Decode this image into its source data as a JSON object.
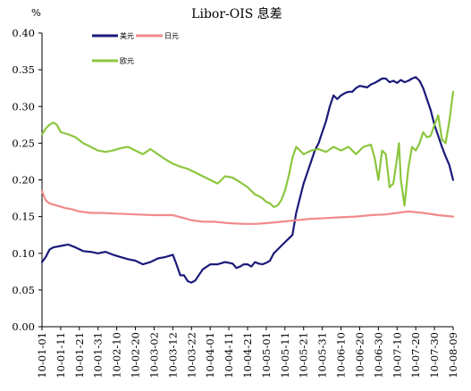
{
  "chart_data": {
    "type": "line",
    "title": "Libor-OIS 息差",
    "ylabel": "%",
    "xlabel": "",
    "ylim": [
      0,
      0.4
    ],
    "y_ticks": [
      "0.00",
      "0.05",
      "0.10",
      "0.15",
      "0.20",
      "0.25",
      "0.30",
      "0.35",
      "0.40"
    ],
    "x_ticks": [
      "10-01-01",
      "10-01-11",
      "10-01-21",
      "10-01-31",
      "10-02-10",
      "10-02-20",
      "10-03-02",
      "10-03-12",
      "10-03-22",
      "10-04-01",
      "10-04-11",
      "10-04-21",
      "10-05-01",
      "10-05-11",
      "10-05-21",
      "10-05-31",
      "10-06-10",
      "10-06-20",
      "10-06-30",
      "10-07-10",
      "10-07-20",
      "10-07-30",
      "10-08-09"
    ],
    "grid": false,
    "legend_position": "top-left",
    "series": [
      {
        "name": "美元",
        "color": "#1a1a7a",
        "x": [
          0,
          2,
          4,
          6,
          10,
          14,
          18,
          22,
          26,
          30,
          34,
          38,
          42,
          46,
          50,
          54,
          58,
          62,
          66,
          70,
          72,
          74,
          76,
          78,
          80,
          82,
          86,
          90,
          94,
          98,
          102,
          104,
          106,
          108,
          110,
          112,
          114,
          116,
          118,
          120,
          122,
          124,
          126,
          128,
          130,
          132,
          134,
          136,
          138,
          140,
          142,
          144,
          146,
          148,
          150,
          152,
          154,
          156,
          158,
          160,
          162,
          164,
          166,
          168,
          170,
          172,
          174,
          176,
          178,
          180,
          182,
          184,
          186,
          188,
          190,
          192,
          194,
          196,
          198,
          200,
          202,
          204,
          206,
          208,
          210,
          212,
          214,
          216,
          218,
          220
        ],
        "y": [
          0.088,
          0.095,
          0.105,
          0.108,
          0.11,
          0.112,
          0.108,
          0.103,
          0.102,
          0.1,
          0.102,
          0.098,
          0.095,
          0.092,
          0.09,
          0.085,
          0.088,
          0.093,
          0.095,
          0.098,
          0.085,
          0.07,
          0.07,
          0.062,
          0.06,
          0.063,
          0.078,
          0.085,
          0.085,
          0.088,
          0.086,
          0.08,
          0.082,
          0.085,
          0.085,
          0.082,
          0.088,
          0.086,
          0.085,
          0.087,
          0.09,
          0.1,
          0.105,
          0.11,
          0.115,
          0.12,
          0.125,
          0.155,
          0.175,
          0.195,
          0.21,
          0.225,
          0.24,
          0.25,
          0.265,
          0.28,
          0.3,
          0.315,
          0.31,
          0.315,
          0.318,
          0.32,
          0.32,
          0.325,
          0.328,
          0.327,
          0.326,
          0.33,
          0.332,
          0.335,
          0.338,
          0.338,
          0.333,
          0.335,
          0.332,
          0.336,
          0.333,
          0.335,
          0.338,
          0.34,
          0.335,
          0.325,
          0.31,
          0.295,
          0.275,
          0.26,
          0.245,
          0.232,
          0.22,
          0.2
        ]
      },
      {
        "name": "日元",
        "color": "#f28a8a",
        "x": [
          0,
          1,
          2,
          4,
          8,
          12,
          16,
          20,
          26,
          32,
          40,
          50,
          60,
          70,
          76,
          80,
          86,
          92,
          100,
          108,
          114,
          120,
          128,
          136,
          144,
          152,
          160,
          168,
          176,
          184,
          190,
          196,
          204,
          212,
          220
        ],
        "y": [
          0.185,
          0.178,
          0.172,
          0.168,
          0.165,
          0.162,
          0.16,
          0.157,
          0.155,
          0.155,
          0.154,
          0.153,
          0.152,
          0.152,
          0.148,
          0.145,
          0.143,
          0.143,
          0.141,
          0.14,
          0.14,
          0.141,
          0.143,
          0.145,
          0.147,
          0.148,
          0.149,
          0.15,
          0.152,
          0.153,
          0.155,
          0.157,
          0.155,
          0.152,
          0.15
        ]
      },
      {
        "name": "欧元",
        "color": "#8cc63f",
        "x": [
          0,
          2,
          4,
          6,
          8,
          10,
          14,
          18,
          22,
          26,
          30,
          34,
          38,
          42,
          46,
          50,
          54,
          58,
          62,
          66,
          70,
          74,
          78,
          82,
          86,
          90,
          94,
          98,
          102,
          106,
          110,
          112,
          114,
          116,
          118,
          120,
          122,
          124,
          126,
          128,
          130,
          132,
          134,
          136,
          140,
          144,
          148,
          152,
          156,
          160,
          164,
          168,
          172,
          176,
          178,
          180,
          182,
          184,
          186,
          188,
          190,
          191,
          192,
          194,
          196,
          198,
          200,
          202,
          204,
          206,
          208,
          210,
          212,
          214,
          216,
          218,
          220
        ],
        "y": [
          0.262,
          0.27,
          0.275,
          0.278,
          0.275,
          0.265,
          0.262,
          0.258,
          0.25,
          0.245,
          0.24,
          0.238,
          0.24,
          0.243,
          0.245,
          0.24,
          0.235,
          0.242,
          0.235,
          0.228,
          0.222,
          0.218,
          0.215,
          0.21,
          0.205,
          0.2,
          0.195,
          0.205,
          0.203,
          0.197,
          0.19,
          0.185,
          0.18,
          0.178,
          0.175,
          0.17,
          0.168,
          0.163,
          0.165,
          0.172,
          0.185,
          0.205,
          0.23,
          0.245,
          0.235,
          0.24,
          0.242,
          0.238,
          0.245,
          0.24,
          0.245,
          0.235,
          0.245,
          0.248,
          0.23,
          0.2,
          0.24,
          0.235,
          0.19,
          0.195,
          0.23,
          0.25,
          0.2,
          0.165,
          0.215,
          0.245,
          0.24,
          0.25,
          0.265,
          0.258,
          0.26,
          0.275,
          0.288,
          0.255,
          0.25,
          0.28,
          0.32
        ]
      }
    ]
  }
}
